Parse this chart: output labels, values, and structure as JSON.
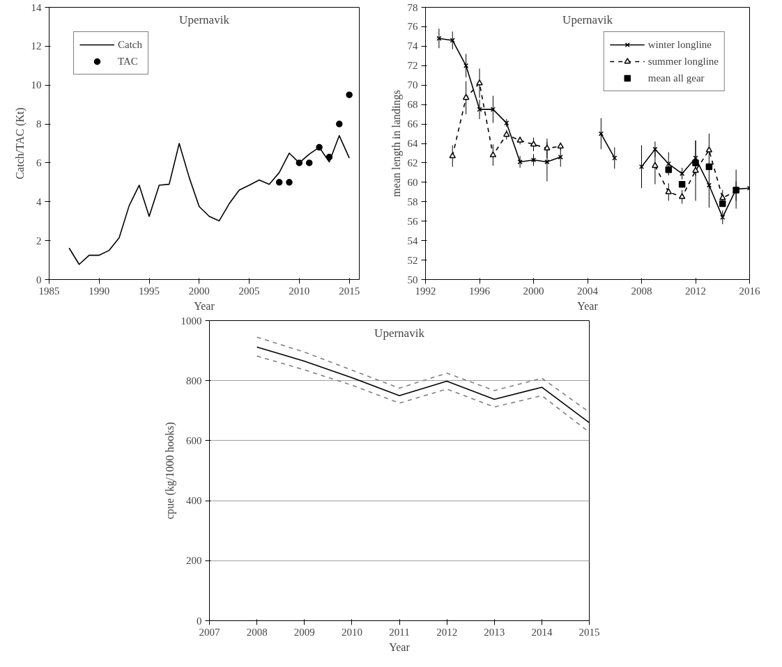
{
  "chart_data": [
    {
      "type": "line",
      "title": "Upernavik",
      "xlabel": "Year",
      "ylabel": "Catch/TAC (Kt)",
      "xlim": [
        1985,
        2016
      ],
      "xticks": [
        1985,
        1990,
        1995,
        2000,
        2005,
        2010,
        2015
      ],
      "ylim": [
        0,
        14
      ],
      "yticks": [
        0,
        2,
        4,
        6,
        8,
        10,
        12,
        14
      ],
      "grid": false,
      "legend": "top left",
      "series": [
        {
          "name": "Catch",
          "color": "#000000",
          "x": [
            1987,
            1988,
            1989,
            1990,
            1991,
            1992,
            1993,
            1994,
            1995,
            1996,
            1997,
            1998,
            1999,
            2000,
            2001,
            2002,
            2003,
            2004,
            2005,
            2006,
            2007,
            2008,
            2009,
            2010,
            2011,
            2012,
            2013,
            2014,
            2015
          ],
          "values": [
            1.62,
            0.78,
            1.25,
            1.25,
            1.5,
            2.15,
            3.8,
            4.85,
            3.25,
            4.85,
            4.9,
            7.0,
            5.25,
            3.75,
            3.25,
            3.02,
            3.9,
            4.6,
            4.85,
            5.12,
            4.9,
            5.5,
            6.5,
            6.0,
            6.45,
            6.8,
            6.05,
            7.4,
            6.25
          ]
        },
        {
          "name": "TAC",
          "type": "scatter",
          "marker": "circle",
          "color": "#000000",
          "x": [
            2008,
            2009,
            2010,
            2011,
            2012,
            2013,
            2014,
            2015
          ],
          "values": [
            5,
            5,
            6,
            6,
            6.8,
            6.3,
            8,
            9.5
          ]
        }
      ]
    },
    {
      "type": "line",
      "title": "Upernavik",
      "xlabel": "Year",
      "ylabel": "mean length in landings",
      "xlim": [
        1992,
        2016
      ],
      "xticks": [
        1992,
        1996,
        2000,
        2004,
        2008,
        2012,
        2016
      ],
      "ylim": [
        50,
        78
      ],
      "yticks": [
        50,
        52,
        54,
        56,
        58,
        60,
        62,
        64,
        66,
        68,
        70,
        72,
        74,
        76,
        78
      ],
      "grid": false,
      "legend": "top right",
      "series": [
        {
          "name": "winter longline",
          "marker": "cross",
          "line_style": "solid",
          "color": "#000000",
          "x": [
            1993,
            1994,
            1995,
            1996,
            1997,
            1998,
            1999,
            2000,
            2001,
            2002,
            2003,
            2005,
            2006,
            2007,
            2008,
            2009,
            2010,
            2011,
            2012,
            2013,
            2014,
            2015,
            2016
          ],
          "values": [
            74.8,
            74.6,
            72.0,
            67.5,
            67.5,
            66.1,
            62.1,
            62.3,
            62.1,
            62.6,
            null,
            65.0,
            62.5,
            null,
            61.6,
            63.4,
            61.9,
            60.9,
            62.5,
            59.7,
            56.4,
            59.3,
            59.4
          ],
          "errors": [
            1.0,
            0.9,
            1.2,
            1.0,
            1.4,
            0.4,
            0.6,
            0.6,
            2.0,
            1.0,
            null,
            1.6,
            1.1,
            null,
            2.2,
            0.8,
            1.2,
            0.6,
            1.8,
            2.3,
            0.7,
            2.0,
            3.8
          ]
        },
        {
          "name": "summer longline",
          "marker": "triangle",
          "line_style": "dashed",
          "color": "#000000",
          "x": [
            1994,
            1995,
            1996,
            1997,
            1998,
            1999,
            2000,
            2001,
            2002,
            2003,
            2009,
            2010,
            2011,
            2012,
            2013,
            2014,
            2015
          ],
          "values": [
            62.7,
            68.7,
            70.2,
            62.8,
            64.9,
            64.3,
            63.9,
            63.5,
            63.7,
            null,
            61.7,
            59.0,
            58.5,
            61.2,
            63.3,
            58.4,
            59.1
          ],
          "errors": [
            1.1,
            1.7,
            1.5,
            1.1,
            0.5,
            0.4,
            0.7,
            1.0,
            0.4,
            null,
            1.9,
            0.9,
            0.7,
            3.1,
            1.7,
            0.8,
            1.0
          ]
        },
        {
          "name": "mean all gear",
          "type": "scatter",
          "marker": "square",
          "color": "#000000",
          "x": [
            2010,
            2011,
            2012,
            2013,
            2014,
            2015
          ],
          "values": [
            61.3,
            59.8,
            62.0,
            61.6,
            57.8,
            59.2
          ]
        }
      ]
    },
    {
      "type": "line",
      "title": "Upernavik",
      "xlabel": "Year",
      "ylabel": "cpue (kg/1000 hooks)",
      "xlim": [
        2007,
        2015
      ],
      "xticks": [
        2007,
        2008,
        2009,
        2010,
        2011,
        2012,
        2013,
        2014,
        2015
      ],
      "ylim": [
        0,
        1000
      ],
      "yticks": [
        0,
        200,
        400,
        600,
        800,
        1000
      ],
      "grid": "y",
      "legend": false,
      "series": [
        {
          "color": "#000000",
          "line_style": "solid",
          "x": [
            2008,
            2009,
            2010,
            2011,
            2012,
            2013,
            2014,
            2015
          ],
          "values": [
            912,
            865,
            810,
            750,
            798,
            738,
            778,
            660
          ]
        },
        {
          "color": "#808080",
          "line_style": "dashed",
          "x": [
            2008,
            2009,
            2010,
            2011,
            2012,
            2013,
            2014,
            2015
          ],
          "values": [
            882,
            836,
            785,
            725,
            772,
            712,
            750,
            628
          ]
        },
        {
          "color": "#808080",
          "line_style": "dashed",
          "x": [
            2008,
            2009,
            2010,
            2011,
            2012,
            2013,
            2014,
            2015
          ],
          "values": [
            945,
            895,
            835,
            775,
            825,
            767,
            808,
            695
          ]
        }
      ]
    }
  ]
}
